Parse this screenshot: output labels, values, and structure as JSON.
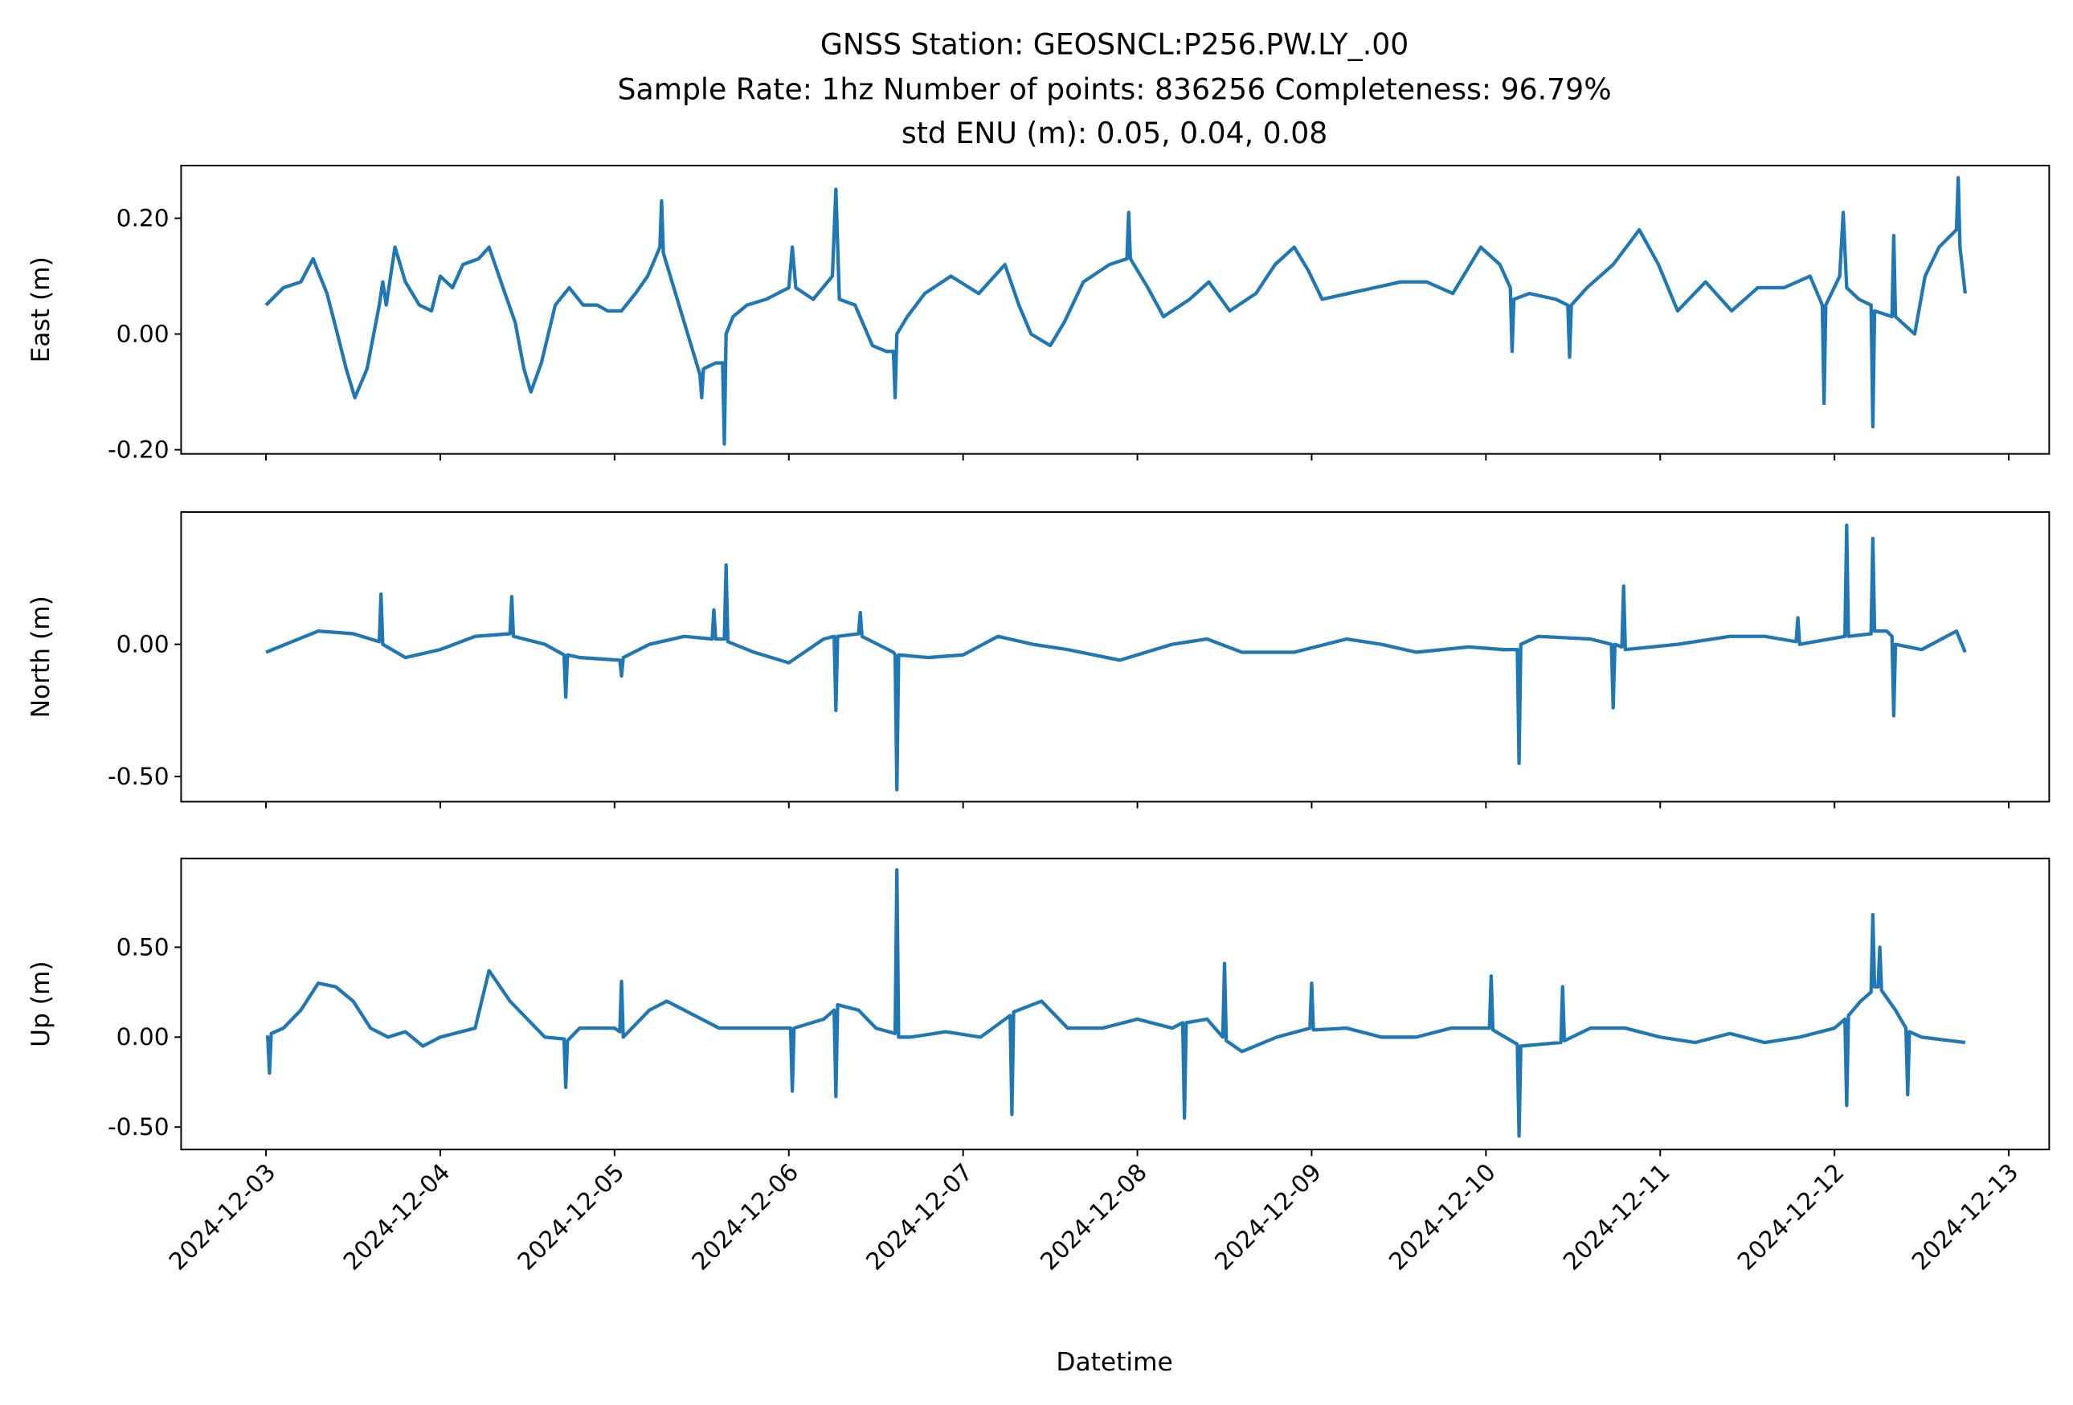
{
  "chart_data": [
    {
      "type": "line",
      "title": [
        "GNSS Station: GEOSNCL:P256.PW.LY_.00",
        "Sample Rate: 1hz   Number of points: 836256    Completeness:  96.79%",
        "std ENU (m):  0.05, 0.04, 0.08"
      ],
      "ylabel": "East (m)",
      "color": "#1f77b4",
      "xlim": [
        -0.487,
        10.232
      ],
      "ylim": [
        -0.207,
        0.291
      ],
      "yticks": [
        {
          "value": 0.2,
          "label": "0.20"
        },
        {
          "value": 0,
          "label": "0.00"
        },
        {
          "value": -0.2,
          "label": "-0.20"
        }
      ],
      "x": [
        0,
        0.1,
        0.2,
        0.27,
        0.35,
        0.41,
        0.46,
        0.51,
        0.58,
        0.65,
        0.67,
        0.69,
        0.74,
        0.8,
        0.88,
        0.95,
        1.0,
        1.07,
        1.13,
        1.22,
        1.28,
        1.36,
        1.43,
        1.48,
        1.52,
        1.58,
        1.66,
        1.74,
        1.82,
        1.9,
        1.96,
        2.04,
        2.12,
        2.19,
        2.26,
        2.27,
        2.28,
        2.34,
        2.42,
        2.49,
        2.5,
        2.51,
        2.58,
        2.62,
        2.63,
        2.64,
        2.68,
        2.76,
        2.87,
        3.0,
        3.02,
        3.04,
        3.14,
        3.25,
        3.27,
        3.29,
        3.38,
        3.48,
        3.56,
        3.6,
        3.61,
        3.62,
        3.68,
        3.78,
        3.93,
        4.09,
        4.24,
        4.32,
        4.39,
        4.5,
        4.58,
        4.69,
        4.84,
        4.94,
        4.95,
        4.96,
        5.06,
        5.15,
        5.3,
        5.41,
        5.53,
        5.68,
        5.79,
        5.9,
        5.98,
        6.06,
        6.21,
        6.36,
        6.51,
        6.66,
        6.81,
        6.97,
        7.08,
        7.14,
        7.15,
        7.16,
        7.25,
        7.4,
        7.47,
        7.48,
        7.49,
        7.58,
        7.73,
        7.88,
        7.99,
        8.1,
        8.26,
        8.41,
        8.56,
        8.71,
        8.86,
        8.93,
        8.94,
        8.95,
        9.03,
        9.05,
        9.07,
        9.14,
        9.21,
        9.22,
        9.23,
        9.33,
        9.34,
        9.35,
        9.46,
        9.52,
        9.6,
        9.7,
        9.71,
        9.72,
        9.75
      ],
      "values": [
        0.05,
        0.08,
        0.09,
        0.13,
        0.07,
        0.0,
        -0.06,
        -0.11,
        -0.06,
        0.05,
        0.09,
        0.05,
        0.15,
        0.09,
        0.05,
        0.04,
        0.1,
        0.08,
        0.12,
        0.13,
        0.15,
        0.08,
        0.02,
        -0.06,
        -0.1,
        -0.05,
        0.05,
        0.08,
        0.05,
        0.05,
        0.04,
        0.04,
        0.07,
        0.1,
        0.15,
        0.23,
        0.14,
        0.08,
        0.0,
        -0.07,
        -0.11,
        -0.06,
        -0.05,
        -0.05,
        -0.19,
        0.0,
        0.03,
        0.05,
        0.06,
        0.08,
        0.15,
        0.08,
        0.06,
        0.1,
        0.25,
        0.06,
        0.05,
        -0.02,
        -0.03,
        -0.03,
        -0.11,
        0.0,
        0.03,
        0.07,
        0.1,
        0.07,
        0.12,
        0.05,
        0.0,
        -0.02,
        0.02,
        0.09,
        0.12,
        0.13,
        0.21,
        0.13,
        0.08,
        0.03,
        0.06,
        0.09,
        0.04,
        0.07,
        0.12,
        0.15,
        0.11,
        0.06,
        0.07,
        0.08,
        0.09,
        0.09,
        0.07,
        0.15,
        0.12,
        0.08,
        -0.03,
        0.06,
        0.07,
        0.06,
        0.05,
        -0.04,
        0.05,
        0.08,
        0.12,
        0.18,
        0.12,
        0.04,
        0.09,
        0.04,
        0.08,
        0.08,
        0.1,
        0.05,
        -0.12,
        0.05,
        0.1,
        0.21,
        0.08,
        0.06,
        0.05,
        -0.16,
        0.04,
        0.03,
        0.17,
        0.03,
        0.0,
        0.1,
        0.15,
        0.18,
        0.27,
        0.15,
        0.07
      ]
    },
    {
      "type": "line",
      "ylabel": "North (m)",
      "color": "#1f77b4",
      "xlim": [
        -0.487,
        10.232
      ],
      "ylim": [
        -0.595,
        0.5
      ],
      "yticks": [
        {
          "value": 0,
          "label": "0.00"
        },
        {
          "value": -0.5,
          "label": "-0.50"
        }
      ],
      "x": [
        0,
        0.3,
        0.5,
        0.65,
        0.66,
        0.67,
        0.8,
        1.0,
        1.2,
        1.4,
        1.41,
        1.42,
        1.6,
        1.71,
        1.72,
        1.73,
        1.8,
        2.03,
        2.04,
        2.05,
        2.2,
        2.4,
        2.56,
        2.57,
        2.58,
        2.63,
        2.64,
        2.65,
        2.8,
        3.0,
        3.2,
        3.26,
        3.27,
        3.28,
        3.4,
        3.41,
        3.42,
        3.6,
        3.61,
        3.62,
        3.63,
        3.8,
        4.0,
        4.2,
        4.4,
        4.6,
        4.9,
        5.2,
        5.4,
        5.6,
        5.9,
        6.2,
        6.4,
        6.6,
        6.9,
        7.1,
        7.18,
        7.19,
        7.2,
        7.3,
        7.6,
        7.72,
        7.73,
        7.74,
        7.78,
        7.79,
        7.8,
        8.1,
        8.4,
        8.6,
        8.78,
        8.79,
        8.8,
        9.06,
        9.07,
        9.08,
        9.21,
        9.22,
        9.23,
        9.3,
        9.33,
        9.34,
        9.35,
        9.5,
        9.7,
        9.75
      ],
      "values": [
        -0.03,
        0.05,
        0.04,
        0.01,
        0.19,
        0.0,
        -0.05,
        -0.02,
        0.03,
        0.04,
        0.18,
        0.03,
        0.0,
        -0.04,
        -0.2,
        -0.04,
        -0.05,
        -0.06,
        -0.12,
        -0.05,
        0.0,
        0.03,
        0.02,
        0.13,
        0.02,
        0.02,
        0.3,
        0.01,
        -0.03,
        -0.07,
        0.02,
        0.03,
        -0.25,
        0.03,
        0.04,
        0.12,
        0.03,
        -0.03,
        -0.04,
        -0.55,
        -0.04,
        -0.05,
        -0.04,
        0.03,
        0.0,
        -0.02,
        -0.06,
        0.0,
        0.02,
        -0.03,
        -0.03,
        0.02,
        0.0,
        -0.03,
        -0.01,
        -0.02,
        -0.02,
        -0.45,
        0.0,
        0.03,
        0.02,
        0.0,
        -0.24,
        0.0,
        -0.01,
        0.22,
        -0.02,
        0.0,
        0.03,
        0.03,
        0.01,
        0.1,
        0.0,
        0.03,
        0.45,
        0.03,
        0.04,
        0.4,
        0.05,
        0.05,
        0.03,
        -0.27,
        0.0,
        -0.02,
        0.05,
        -0.03
      ]
    },
    {
      "type": "line",
      "ylabel": "Up (m)",
      "xlabel": "Datetime",
      "color": "#1f77b4",
      "xlim": [
        -0.487,
        10.232
      ],
      "ylim": [
        -0.625,
        0.993
      ],
      "yticks": [
        {
          "value": 0.5,
          "label": "0.50"
        },
        {
          "value": 0,
          "label": "0.00"
        },
        {
          "value": -0.5,
          "label": "-0.50"
        }
      ],
      "xticks": [
        {
          "value": 0,
          "label": "2024-12-03"
        },
        {
          "value": 1,
          "label": "2024-12-04"
        },
        {
          "value": 2,
          "label": "2024-12-05"
        },
        {
          "value": 3,
          "label": "2024-12-06"
        },
        {
          "value": 4,
          "label": "2024-12-07"
        },
        {
          "value": 5,
          "label": "2024-12-08"
        },
        {
          "value": 6,
          "label": "2024-12-09"
        },
        {
          "value": 7,
          "label": "2024-12-10"
        },
        {
          "value": 8,
          "label": "2024-12-11"
        },
        {
          "value": 9,
          "label": "2024-12-12"
        },
        {
          "value": 10,
          "label": "2024-12-13"
        }
      ],
      "x": [
        0,
        0.01,
        0.02,
        0.03,
        0.1,
        0.2,
        0.3,
        0.4,
        0.5,
        0.6,
        0.7,
        0.8,
        0.9,
        1.0,
        1.2,
        1.28,
        1.4,
        1.5,
        1.6,
        1.71,
        1.72,
        1.73,
        1.8,
        2.0,
        2.03,
        2.04,
        2.05,
        2.2,
        2.3,
        2.4,
        2.6,
        2.8,
        3.01,
        3.02,
        3.03,
        3.2,
        3.26,
        3.27,
        3.28,
        3.4,
        3.5,
        3.61,
        3.62,
        3.63,
        3.7,
        3.9,
        4.1,
        4.27,
        4.28,
        4.29,
        4.45,
        4.6,
        4.8,
        5.0,
        5.2,
        5.26,
        5.27,
        5.28,
        5.4,
        5.49,
        5.5,
        5.51,
        5.6,
        5.8,
        5.99,
        6.0,
        6.01,
        6.2,
        6.4,
        6.6,
        6.8,
        7.02,
        7.03,
        7.04,
        7.18,
        7.19,
        7.2,
        7.43,
        7.44,
        7.45,
        7.6,
        7.8,
        8.0,
        8.2,
        8.4,
        8.6,
        8.8,
        9.0,
        9.06,
        9.07,
        9.08,
        9.15,
        9.21,
        9.22,
        9.23,
        9.25,
        9.26,
        9.27,
        9.35,
        9.41,
        9.42,
        9.43,
        9.5,
        9.75
      ],
      "values": [
        0.0,
        0.0,
        -0.2,
        0.02,
        0.05,
        0.15,
        0.3,
        0.28,
        0.2,
        0.05,
        0.0,
        0.03,
        -0.05,
        0.0,
        0.05,
        0.37,
        0.2,
        0.1,
        0.0,
        -0.01,
        -0.28,
        -0.02,
        0.05,
        0.05,
        0.03,
        0.31,
        0.0,
        0.15,
        0.2,
        0.15,
        0.05,
        0.05,
        0.05,
        -0.3,
        0.05,
        0.1,
        0.15,
        -0.33,
        0.18,
        0.15,
        0.05,
        0.02,
        0.93,
        0.0,
        0.0,
        0.03,
        0.0,
        0.12,
        -0.43,
        0.14,
        0.2,
        0.05,
        0.05,
        0.1,
        0.05,
        0.08,
        -0.45,
        0.08,
        0.1,
        0.0,
        0.41,
        -0.02,
        -0.08,
        0.0,
        0.05,
        0.3,
        0.04,
        0.05,
        0.0,
        0.0,
        0.05,
        0.05,
        0.34,
        0.04,
        -0.04,
        -0.55,
        -0.05,
        -0.03,
        0.28,
        -0.02,
        0.05,
        0.05,
        0.0,
        -0.03,
        0.02,
        -0.03,
        0.0,
        0.05,
        0.1,
        -0.38,
        0.12,
        0.2,
        0.25,
        0.68,
        0.28,
        0.28,
        0.5,
        0.26,
        0.15,
        0.05,
        -0.32,
        0.03,
        0.0,
        -0.03
      ]
    }
  ]
}
